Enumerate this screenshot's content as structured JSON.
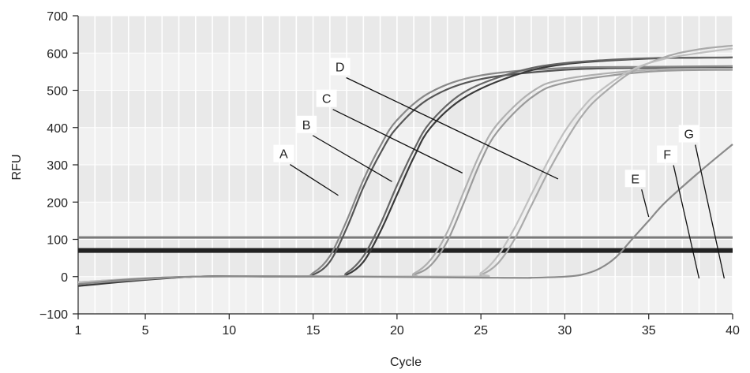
{
  "chart_data": {
    "type": "line",
    "xlabel": "Cycle",
    "ylabel": "RFU",
    "xlim": [
      1,
      40
    ],
    "ylim": [
      -100,
      700
    ],
    "x_ticks": [
      1,
      5,
      10,
      15,
      20,
      25,
      30,
      35,
      40
    ],
    "y_ticks": [
      -100,
      0,
      100,
      200,
      300,
      400,
      500,
      600,
      700
    ],
    "grid": "vertical per cycle, shaded bands",
    "threshold_lines": [
      105,
      70
    ],
    "series": [
      {
        "x": [
          1,
          8,
          14,
          15,
          16,
          17,
          18,
          19,
          20,
          22,
          25,
          30,
          35,
          40
        ],
        "y": [
          -20,
          0,
          0,
          5,
          40,
          130,
          240,
          330,
          400,
          480,
          530,
          555,
          560,
          560
        ],
        "color": "#555555"
      },
      {
        "x": [
          1,
          8,
          14,
          15,
          16,
          17,
          18,
          19,
          20,
          22,
          25,
          30,
          35,
          40
        ],
        "y": [
          -15,
          0,
          0,
          10,
          55,
          150,
          260,
          350,
          420,
          495,
          540,
          560,
          563,
          565
        ],
        "color": "#888888"
      },
      {
        "x": [
          1,
          8,
          16,
          17,
          18,
          19,
          20,
          21,
          22,
          24,
          27,
          30,
          35,
          40
        ],
        "y": [
          -25,
          0,
          0,
          5,
          40,
          120,
          220,
          320,
          400,
          480,
          540,
          570,
          585,
          588
        ],
        "color": "#3a3a3a"
      },
      {
        "x": [
          1,
          8,
          16,
          17,
          18,
          19,
          20,
          21,
          22,
          24,
          27,
          30,
          35,
          40
        ],
        "y": [
          -20,
          0,
          0,
          10,
          55,
          140,
          245,
          340,
          415,
          495,
          548,
          573,
          586,
          588
        ],
        "color": "#666666"
      },
      {
        "x": [
          1,
          8,
          20,
          21,
          22,
          23,
          24,
          25,
          26,
          28,
          30,
          35,
          40
        ],
        "y": [
          -20,
          0,
          0,
          5,
          30,
          95,
          200,
          310,
          390,
          480,
          520,
          550,
          555
        ],
        "color": "#9a9a9a"
      },
      {
        "x": [
          1,
          8,
          20,
          21,
          22,
          23,
          24,
          25,
          26,
          28,
          30,
          35,
          40
        ],
        "y": [
          -15,
          0,
          0,
          8,
          45,
          120,
          230,
          335,
          410,
          495,
          530,
          555,
          558
        ],
        "color": "#b0b0b0"
      },
      {
        "x": [
          1,
          8,
          24,
          25,
          26,
          27,
          28,
          29,
          30,
          31,
          32,
          34,
          36,
          38,
          40
        ],
        "y": [
          -20,
          0,
          0,
          5,
          35,
          100,
          190,
          280,
          360,
          430,
          480,
          550,
          590,
          610,
          620
        ],
        "color": "#aaaaaa"
      },
      {
        "x": [
          1,
          8,
          24,
          25,
          26,
          27,
          28,
          29,
          30,
          31,
          32,
          34,
          36,
          38,
          40
        ],
        "y": [
          -15,
          0,
          0,
          10,
          55,
          130,
          220,
          310,
          390,
          450,
          495,
          555,
          585,
          600,
          612
        ],
        "color": "#c0c0c0"
      },
      {
        "x": [
          1,
          8,
          26,
          28,
          30,
          31,
          32,
          33,
          34,
          35,
          36,
          38,
          40
        ],
        "y": [
          -20,
          0,
          -3,
          -3,
          0,
          5,
          20,
          50,
          100,
          150,
          200,
          280,
          355
        ],
        "color": "#8a8a8a"
      }
    ],
    "annotations": [
      {
        "text": "A",
        "x": 13.25,
        "y": 322,
        "tx": 16.5,
        "ty": 218
      },
      {
        "text": "B",
        "x": 14.6,
        "y": 400,
        "tx": 19.7,
        "ty": 255
      },
      {
        "text": "C",
        "x": 15.8,
        "y": 470,
        "tx": 23.9,
        "ty": 278
      },
      {
        "text": "D",
        "x": 16.6,
        "y": 555,
        "tx": 29.6,
        "ty": 262
      },
      {
        "text": "E",
        "x": 34.2,
        "y": 255,
        "tx": 35.0,
        "ty": 160
      },
      {
        "text": "F",
        "x": 36.1,
        "y": 320,
        "tx": 38.0,
        "ty": -5
      },
      {
        "text": "G",
        "x": 37.4,
        "y": 375,
        "tx": 39.5,
        "ty": -5
      }
    ]
  }
}
